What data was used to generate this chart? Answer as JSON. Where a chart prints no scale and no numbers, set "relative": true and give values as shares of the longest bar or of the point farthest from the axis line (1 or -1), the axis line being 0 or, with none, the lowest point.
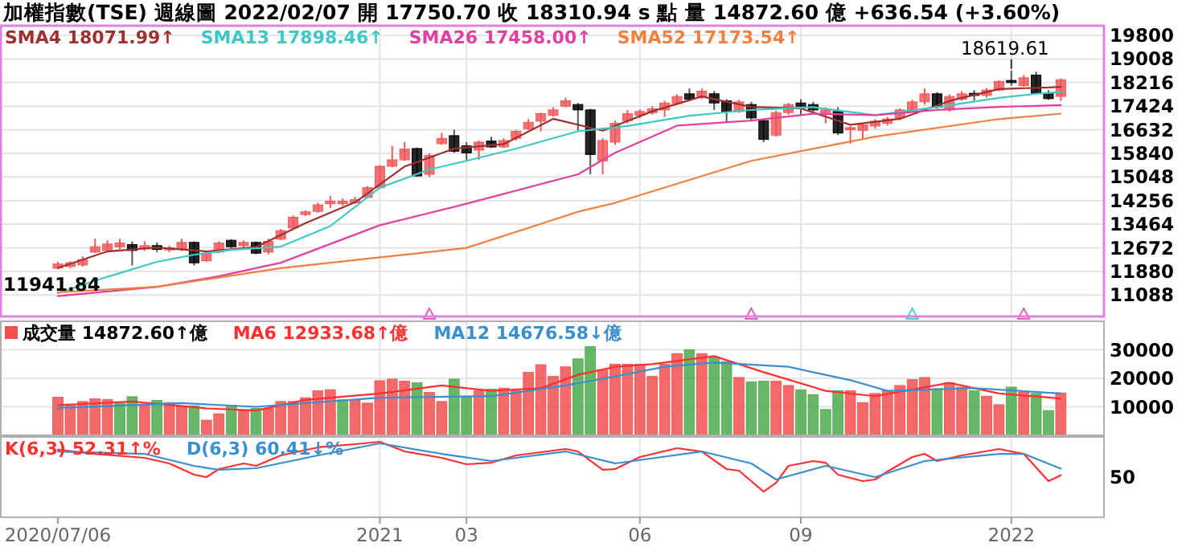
{
  "chart_data": [
    {
      "type": "candlestick",
      "title": "加權指數(TSE)  週線圖  2022/02/07  開 17750.70  收 18310.94 s 點  量 14872.60 億  +636.54 (+3.60%)",
      "categories": [
        "2020/07/06",
        null,
        null,
        null,
        null,
        null,
        null,
        null,
        null,
        null,
        null,
        null,
        null,
        null,
        null,
        null,
        null,
        null,
        null,
        null,
        null,
        null,
        null,
        null,
        null,
        null,
        "2021",
        null,
        null,
        null,
        null,
        null,
        null,
        "03",
        null,
        null,
        null,
        null,
        null,
        null,
        null,
        null,
        null,
        null,
        null,
        null,
        null,
        "06",
        null,
        null,
        null,
        null,
        null,
        null,
        null,
        null,
        null,
        null,
        null,
        null,
        "09",
        null,
        null,
        null,
        null,
        null,
        null,
        null,
        null,
        null,
        null,
        null,
        null,
        null,
        null,
        null,
        null,
        "2022",
        null,
        null,
        null,
        null
      ],
      "ohlc": [
        [
          11988,
          12204,
          11941.84,
          12132
        ],
        [
          12042,
          12222,
          11988,
          12168
        ],
        [
          12096,
          12384,
          12042,
          12276
        ],
        [
          12528,
          12978,
          12492,
          12708
        ],
        [
          12582,
          12924,
          12528,
          12798
        ],
        [
          12708,
          12978,
          12618,
          12834
        ],
        [
          12780,
          12888,
          12078,
          12582
        ],
        [
          12636,
          12888,
          12564,
          12744
        ],
        [
          12744,
          12852,
          12528,
          12618
        ],
        [
          12600,
          12744,
          12528,
          12672
        ],
        [
          12636,
          12978,
          12564,
          12852
        ],
        [
          12852,
          12888,
          12078,
          12168
        ],
        [
          12240,
          12564,
          12204,
          12492
        ],
        [
          12528,
          12888,
          12492,
          12834
        ],
        [
          12924,
          12960,
          12654,
          12708
        ],
        [
          12744,
          12924,
          12672,
          12852
        ],
        [
          12852,
          12888,
          12456,
          12492
        ],
        [
          12528,
          12978,
          12456,
          12888
        ],
        [
          12960,
          13302,
          12924,
          13248
        ],
        [
          13338,
          13752,
          13284,
          13698
        ],
        [
          13788,
          13932,
          13734,
          13878
        ],
        [
          13896,
          14184,
          13842,
          14112
        ],
        [
          14148,
          14418,
          14004,
          14238
        ],
        [
          14148,
          14328,
          14076,
          14238
        ],
        [
          14184,
          14382,
          14148,
          14292
        ],
        [
          14364,
          14742,
          14328,
          14688
        ],
        [
          14688,
          15444,
          14652,
          15408
        ],
        [
          15408,
          16092,
          15372,
          15624
        ],
        [
          15624,
          16218,
          15588,
          15984
        ],
        [
          16002,
          16038,
          15048,
          15084
        ],
        [
          15138,
          15840,
          15048,
          15768
        ],
        [
          16164,
          16524,
          16128,
          16344
        ],
        [
          16434,
          16632,
          15858,
          15912
        ],
        [
          16092,
          16218,
          15588,
          15858
        ],
        [
          15948,
          16272,
          15624,
          16218
        ],
        [
          16254,
          16398,
          16020,
          16056
        ],
        [
          16056,
          16344,
          16020,
          16272
        ],
        [
          16344,
          16632,
          16272,
          16578
        ],
        [
          16668,
          16992,
          16632,
          16884
        ],
        [
          16920,
          17208,
          16578,
          17172
        ],
        [
          17118,
          17388,
          17064,
          17298
        ],
        [
          17424,
          17712,
          17388,
          17604
        ],
        [
          17478,
          17532,
          16614,
          17298
        ],
        [
          17298,
          17334,
          15138,
          15804
        ],
        [
          15588,
          16344,
          15138,
          16272
        ],
        [
          16218,
          16938,
          16128,
          16848
        ],
        [
          16938,
          17298,
          16848,
          17172
        ],
        [
          17118,
          17316,
          17028,
          17244
        ],
        [
          17208,
          17424,
          17136,
          17334
        ],
        [
          17298,
          17604,
          17064,
          17532
        ],
        [
          17514,
          17820,
          17460,
          17748
        ],
        [
          17838,
          18018,
          17604,
          17658
        ],
        [
          17748,
          18018,
          17658,
          17928
        ],
        [
          17838,
          17928,
          17298,
          17532
        ],
        [
          17604,
          17658,
          16884,
          17244
        ],
        [
          17244,
          17640,
          17208,
          17568
        ],
        [
          17478,
          17568,
          16938,
          17028
        ],
        [
          16938,
          16992,
          16218,
          16308
        ],
        [
          16452,
          17280,
          16398,
          17208
        ],
        [
          17208,
          17532,
          17136,
          17478
        ],
        [
          17532,
          17658,
          17118,
          17424
        ],
        [
          17478,
          17568,
          17244,
          17298
        ],
        [
          17208,
          17388,
          16848,
          17298
        ],
        [
          17244,
          17388,
          16452,
          16524
        ],
        [
          16632,
          16758,
          16164,
          16704
        ],
        [
          16614,
          16848,
          16344,
          16794
        ],
        [
          16758,
          16992,
          16668,
          16920
        ],
        [
          16848,
          17064,
          16776,
          16992
        ],
        [
          17028,
          17352,
          16956,
          17298
        ],
        [
          17298,
          17640,
          17208,
          17568
        ],
        [
          17568,
          18018,
          17478,
          17838
        ],
        [
          17838,
          17892,
          17334,
          17388
        ],
        [
          17298,
          17820,
          17244,
          17748
        ],
        [
          17658,
          17928,
          17604,
          17838
        ],
        [
          17856,
          17964,
          17604,
          17784
        ],
        [
          17784,
          18036,
          17712,
          17964
        ],
        [
          17964,
          18288,
          17928,
          18252
        ],
        [
          18288,
          18619.61,
          18108,
          18216
        ],
        [
          18108,
          18468,
          18072,
          18378
        ],
        [
          18468,
          18582,
          17838,
          17856
        ],
        [
          17856,
          17964,
          17640,
          17676
        ],
        [
          17750.7,
          18360,
          17600,
          18310.94
        ]
      ],
      "colors": [
        "#f05a5a",
        "#f05a5a",
        "#f05a5a",
        "#f05a5a",
        "#f05a5a",
        "#f05a5a",
        "#000000",
        "#f05a5a",
        "#000000",
        "#f05a5a",
        "#f05a5a",
        "#000000",
        "#f05a5a",
        "#f05a5a",
        "#000000",
        "#f05a5a",
        "#000000",
        "#f05a5a",
        "#f05a5a",
        "#f05a5a",
        "#f05a5a",
        "#f05a5a",
        "#f05a5a",
        "#f05a5a",
        "#f05a5a",
        "#f05a5a",
        "#f05a5a",
        "#f05a5a",
        "#f05a5a",
        "#000000",
        "#f05a5a",
        "#f05a5a",
        "#000000",
        "#000000",
        "#f05a5a",
        "#000000",
        "#f05a5a",
        "#f05a5a",
        "#f05a5a",
        "#f05a5a",
        "#f05a5a",
        "#f05a5a",
        "#000000",
        "#000000",
        "#f05a5a",
        "#f05a5a",
        "#f05a5a",
        "#f05a5a",
        "#f05a5a",
        "#f05a5a",
        "#f05a5a",
        "#000000",
        "#f05a5a",
        "#000000",
        "#000000",
        "#f05a5a",
        "#000000",
        "#000000",
        "#f05a5a",
        "#f05a5a",
        "#000000",
        "#000000",
        "#f05a5a",
        "#000000",
        "#f05a5a",
        "#f05a5a",
        "#f05a5a",
        "#f05a5a",
        "#f05a5a",
        "#f05a5a",
        "#f05a5a",
        "#000000",
        "#f05a5a",
        "#f05a5a",
        "#000000",
        "#f05a5a",
        "#f05a5a",
        "#000000",
        "#f05a5a",
        "#000000",
        "#000000",
        "#f05a5a"
      ],
      "series": [
        {
          "name": "SMA4 18071.99↑",
          "type": "line",
          "color": "#a03030",
          "values": [
            12000,
            null,
            null,
            null,
            12550,
            null,
            null,
            null,
            12680,
            null,
            null,
            null,
            12550,
            null,
            null,
            null,
            12700,
            null,
            null,
            null,
            13500,
            null,
            null,
            null,
            14200,
            null,
            null,
            null,
            15400,
            null,
            null,
            null,
            16000,
            null,
            null,
            null,
            16150,
            null,
            null,
            null,
            17000,
            null,
            null,
            null,
            16600,
            null,
            null,
            null,
            17250,
            null,
            null,
            null,
            17750,
            null,
            null,
            null,
            17400,
            null,
            null,
            null,
            17350,
            null,
            null,
            null,
            16800,
            null,
            null,
            null,
            17000,
            null,
            null,
            null,
            17600,
            null,
            null,
            null,
            18000,
            null,
            null,
            null,
            18050,
            18071.99
          ]
        },
        {
          "name": "SMA13 17898.46↑",
          "type": "line",
          "color": "#40c8c8",
          "values": [
            11150,
            null,
            null,
            null,
            11700,
            null,
            null,
            null,
            12200,
            null,
            null,
            12440,
            null,
            null,
            12600,
            null,
            null,
            null,
            12710,
            null,
            null,
            null,
            13400,
            null,
            null,
            null,
            14690,
            null,
            null,
            null,
            15300,
            null,
            null,
            15590,
            null,
            null,
            null,
            16000,
            null,
            null,
            null,
            null,
            16580,
            null,
            null,
            null,
            16760,
            null,
            null,
            null,
            null,
            17100,
            null,
            null,
            null,
            null,
            17300,
            null,
            null,
            null,
            null,
            17390,
            null,
            null,
            null,
            null,
            17120,
            null,
            null,
            null,
            null,
            17390,
            null,
            null,
            null,
            null,
            17700,
            null,
            null,
            17840,
            null,
            17898.46
          ]
        },
        {
          "name": "SMA26 17458.00↑",
          "type": "line",
          "color": "#e040a0",
          "values": [
            11050,
            null,
            null,
            null,
            null,
            null,
            null,
            null,
            11360,
            null,
            null,
            null,
            null,
            11720,
            null,
            null,
            null,
            null,
            12170,
            null,
            null,
            null,
            null,
            null,
            null,
            null,
            13430,
            null,
            null,
            null,
            null,
            null,
            null,
            14150,
            null,
            null,
            null,
            null,
            null,
            null,
            null,
            null,
            15140,
            null,
            null,
            15860,
            null,
            null,
            null,
            null,
            16770,
            null,
            null,
            null,
            null,
            null,
            16940,
            null,
            null,
            null,
            null,
            17170,
            null,
            null,
            null,
            null,
            17120,
            null,
            null,
            null,
            null,
            17300,
            null,
            null,
            null,
            null,
            17400,
            null,
            null,
            null,
            null,
            17458
          ]
        },
        {
          "name": "SMA52 17173.54↑",
          "type": "line",
          "color": "#f08040",
          "values": [
            11180,
            null,
            null,
            null,
            null,
            null,
            null,
            null,
            11360,
            null,
            null,
            null,
            null,
            null,
            null,
            null,
            null,
            null,
            11990,
            null,
            null,
            null,
            null,
            null,
            null,
            null,
            12350,
            null,
            null,
            null,
            null,
            null,
            null,
            12670,
            null,
            null,
            null,
            null,
            null,
            null,
            null,
            null,
            13880,
            null,
            null,
            14180,
            null,
            null,
            null,
            null,
            null,
            null,
            null,
            null,
            null,
            null,
            15590,
            null,
            null,
            null,
            null,
            null,
            null,
            null,
            null,
            null,
            16400,
            null,
            null,
            null,
            null,
            null,
            null,
            null,
            null,
            null,
            16990,
            null,
            null,
            null,
            null,
            17173.54
          ]
        },
        {
          "type": "scatter",
          "marker": "triangle",
          "colors": [
            null,
            null,
            null,
            null,
            null,
            null,
            null,
            null,
            null,
            null,
            null,
            null,
            null,
            null,
            null,
            null,
            null,
            null,
            null,
            null,
            null,
            null,
            null,
            null,
            null,
            null,
            null,
            null,
            null,
            null,
            "#e060c0",
            null,
            null,
            null,
            null,
            null,
            null,
            null,
            null,
            null,
            null,
            null,
            null,
            null,
            null,
            null,
            null,
            null,
            null,
            null,
            null,
            null,
            null,
            null,
            null,
            null,
            "#e060c0",
            null,
            null,
            null,
            null,
            null,
            null,
            null,
            null,
            null,
            null,
            null,
            null,
            "#50d0d0",
            null,
            null,
            null,
            null,
            null,
            null,
            null,
            null,
            "#e060c0",
            null,
            null,
            null
          ],
          "values": [
            null,
            null,
            null,
            null,
            null,
            null,
            null,
            null,
            null,
            null,
            null,
            null,
            null,
            null,
            null,
            null,
            null,
            null,
            null,
            null,
            null,
            null,
            null,
            null,
            null,
            null,
            null,
            null,
            null,
            null,
            10450,
            null,
            null,
            null,
            null,
            null,
            null,
            null,
            null,
            null,
            null,
            null,
            null,
            null,
            null,
            null,
            null,
            null,
            null,
            null,
            null,
            null,
            null,
            null,
            null,
            null,
            10450,
            null,
            null,
            null,
            null,
            null,
            null,
            null,
            null,
            null,
            null,
            null,
            null,
            10450,
            null,
            null,
            null,
            null,
            null,
            null,
            null,
            null,
            10450,
            null,
            null,
            null
          ]
        }
      ],
      "annotations": [
        {
          "text": "18619.61",
          "x": "2022",
          "y": 18619.61
        },
        {
          "text": "11941.84",
          "x": "2020/07/06",
          "y": 11941.84
        }
      ],
      "ylim": [
        10368,
        20124
      ],
      "yticks": [
        11088,
        11880,
        12672,
        13464,
        14256,
        15048,
        15840,
        16632,
        17424,
        18216,
        19008,
        19800
      ],
      "grid": true,
      "legend": "top left",
      "tick_labels": "y"
    },
    {
      "type": "bar",
      "categories": [
        "2020/07/06",
        null,
        null,
        null,
        null,
        null,
        null,
        null,
        null,
        null,
        null,
        null,
        null,
        null,
        null,
        null,
        null,
        null,
        null,
        null,
        null,
        null,
        null,
        null,
        null,
        null,
        "2021",
        null,
        null,
        null,
        null,
        null,
        null,
        "03",
        null,
        null,
        null,
        null,
        null,
        null,
        null,
        null,
        null,
        null,
        null,
        null,
        null,
        "06",
        null,
        null,
        null,
        null,
        null,
        null,
        null,
        null,
        null,
        null,
        null,
        null,
        "09",
        null,
        null,
        null,
        null,
        null,
        null,
        null,
        null,
        null,
        null,
        null,
        null,
        null,
        null,
        null,
        null,
        "2022",
        null,
        null,
        null,
        null
      ],
      "series": [
        {
          "name": "成交量 14872.60↑億",
          "type": "bar",
          "colors": [
            "#f25050",
            "#f25050",
            "#f25050",
            "#f25050",
            "#f25050",
            "#4caa4c",
            "#4caa4c",
            "#f25050",
            "#4caa4c",
            "#f25050",
            "#f25050",
            "#4caa4c",
            "#f25050",
            "#f25050",
            "#4caa4c",
            "#f25050",
            "#4caa4c",
            "#f25050",
            "#f25050",
            "#f25050",
            "#f25050",
            "#f25050",
            "#f25050",
            "#4caa4c",
            "#f25050",
            "#f25050",
            "#f25050",
            "#f25050",
            "#f25050",
            "#4caa4c",
            "#f25050",
            "#f25050",
            "#4caa4c",
            "#4caa4c",
            "#f25050",
            "#4caa4c",
            "#f25050",
            "#f25050",
            "#f25050",
            "#f25050",
            "#f25050",
            "#f25050",
            "#4caa4c",
            "#4caa4c",
            "#f25050",
            "#f25050",
            "#f25050",
            "#f25050",
            "#f25050",
            "#f25050",
            "#f25050",
            "#4caa4c",
            "#f25050",
            "#4caa4c",
            "#4caa4c",
            "#f25050",
            "#4caa4c",
            "#4caa4c",
            "#f25050",
            "#f25050",
            "#4caa4c",
            "#4caa4c",
            "#4caa4c",
            "#4caa4c",
            "#f25050",
            "#f25050",
            "#f25050",
            "#f25050",
            "#f25050",
            "#f25050",
            "#f25050",
            "#4caa4c",
            "#f25050",
            "#f25050",
            "#4caa4c",
            "#f25050",
            "#f25050",
            "#4caa4c",
            "#f25050",
            "#4caa4c",
            "#4caa4c",
            "#f25050"
          ],
          "values": [
            13370,
            10940,
            11870,
            12810,
            12620,
            11310,
            13560,
            10940,
            12250,
            11500,
            10380,
            10380,
            5330,
            7570,
            10570,
            8700,
            9440,
            9440,
            11870,
            11870,
            13180,
            15610,
            15990,
            12440,
            12440,
            11310,
            19170,
            19730,
            18980,
            18420,
            15050,
            11870,
            19730,
            13740,
            15610,
            16180,
            16550,
            15610,
            22160,
            24780,
            20660,
            24030,
            26830,
            31140,
            22910,
            24960,
            24960,
            24960,
            20660,
            24960,
            28700,
            30010,
            28700,
            27400,
            25900,
            20290,
            18790,
            18980,
            18980,
            17480,
            15990,
            14310,
            9070,
            15610,
            15610,
            11500,
            14680,
            15610,
            17480,
            19540,
            20290,
            16360,
            18420,
            16920,
            15610,
            13740,
            10750,
            16920,
            15240,
            14680,
            8700,
            14872.6
          ]
        },
        {
          "name": "MA6 12933.68↑億",
          "type": "line",
          "color": "#ff3030",
          "values": [
            10570,
            null,
            null,
            null,
            null,
            null,
            11870,
            null,
            null,
            null,
            null,
            null,
            9440,
            null,
            null,
            null,
            8700,
            null,
            null,
            null,
            12440,
            null,
            null,
            null,
            null,
            null,
            14680,
            null,
            null,
            null,
            null,
            17480,
            null,
            null,
            null,
            15610,
            null,
            null,
            null,
            16550,
            null,
            null,
            21220,
            null,
            null,
            24030,
            null,
            null,
            24960,
            null,
            null,
            null,
            null,
            27770,
            null,
            null,
            null,
            22160,
            null,
            null,
            null,
            null,
            15610,
            null,
            null,
            null,
            13740,
            null,
            null,
            null,
            null,
            null,
            18420,
            null,
            null,
            null,
            14680,
            null,
            null,
            null,
            null,
            12933.68
          ]
        },
        {
          "name": "MA12 14676.58↓億",
          "type": "line",
          "color": "#3a8fd0",
          "values": [
            9630,
            null,
            null,
            null,
            null,
            null,
            null,
            null,
            null,
            null,
            11310,
            null,
            null,
            null,
            null,
            null,
            10000,
            null,
            null,
            null,
            null,
            null,
            null,
            null,
            null,
            null,
            13180,
            null,
            null,
            null,
            null,
            null,
            null,
            null,
            null,
            13740,
            null,
            null,
            null,
            null,
            null,
            17480,
            null,
            null,
            null,
            20660,
            null,
            null,
            null,
            24030,
            null,
            null,
            null,
            25530,
            null,
            null,
            null,
            null,
            null,
            24030,
            null,
            null,
            null,
            null,
            19350,
            null,
            null,
            15610,
            null,
            null,
            null,
            null,
            null,
            null,
            16550,
            null,
            null,
            null,
            null,
            null,
            null,
            14676.58
          ]
        }
      ],
      "ylim": [
        0,
        40000
      ],
      "yticks": [
        10000,
        20000,
        30000
      ],
      "grid": true,
      "legend": "top left",
      "tick_labels": "y"
    },
    {
      "type": "line",
      "categories": [
        "2020/07/06",
        null,
        null,
        null,
        null,
        null,
        null,
        null,
        null,
        null,
        null,
        null,
        null,
        null,
        null,
        null,
        null,
        null,
        null,
        null,
        null,
        null,
        null,
        null,
        null,
        null,
        "2021",
        null,
        null,
        null,
        null,
        null,
        null,
        "03",
        null,
        null,
        null,
        null,
        null,
        null,
        null,
        null,
        null,
        null,
        null,
        null,
        null,
        "06",
        null,
        null,
        null,
        null,
        null,
        null,
        null,
        null,
        null,
        null,
        null,
        null,
        "09",
        null,
        null,
        null,
        null,
        null,
        null,
        null,
        null,
        null,
        null,
        null,
        null,
        null,
        null,
        null,
        null,
        "2022",
        null,
        null,
        null,
        null
      ],
      "series": [
        {
          "name": "K(6,3) 52.31↑%",
          "color": "#ff3030",
          "values": [
            0.894,
            null,
            null,
            0.84,
            null,
            null,
            null,
            0.787,
            null,
            0.713,
            null,
            0.564,
            0.532,
            0.638,
            null,
            0.713,
            0.681,
            null,
            0.819,
            null,
            null,
            0.926,
            null,
            null,
            0.968,
            null,
            1,
            null,
            0.872,
            null,
            null,
            0.787,
            null,
            0.702,
            null,
            0.723,
            null,
            0.819,
            null,
            null,
            null,
            0.904,
            0.872,
            null,
            0.628,
            0.638,
            null,
            0.798,
            null,
            null,
            0.915,
            null,
            0.872,
            null,
            0.638,
            0.617,
            null,
            0.34,
            0.457,
            0.681,
            null,
            0.745,
            0.723,
            0.564,
            null,
            0.479,
            0.5,
            0.606,
            null,
            0.798,
            0.84,
            0.745,
            null,
            0.819,
            null,
            null,
            0.904,
            null,
            0.84,
            null,
            0.479,
            0.556
          ]
        },
        {
          "name": "D(6,3) 60.41↓%",
          "color": "#3a8fd0",
          "values": [
            0.872,
            null,
            null,
            null,
            null,
            null,
            null,
            0.84,
            null,
            null,
            null,
            0.681,
            null,
            0.628,
            null,
            null,
            0.649,
            null,
            null,
            null,
            null,
            0.819,
            null,
            null,
            null,
            null,
            0.979,
            null,
            null,
            null,
            null,
            0.84,
            null,
            null,
            null,
            0.745,
            null,
            null,
            null,
            null,
            null,
            0.872,
            null,
            null,
            null,
            0.713,
            null,
            null,
            null,
            null,
            null,
            null,
            0.872,
            null,
            null,
            null,
            0.713,
            null,
            0.5,
            null,
            null,
            null,
            0.681,
            null,
            null,
            null,
            0.532,
            null,
            null,
            null,
            0.745,
            null,
            null,
            null,
            null,
            null,
            0.84,
            null,
            0.84,
            null,
            null,
            0.643
          ]
        }
      ],
      "relative": true,
      "annotations": [
        "50"
      ],
      "grid": "x",
      "legend": "top left"
    }
  ]
}
